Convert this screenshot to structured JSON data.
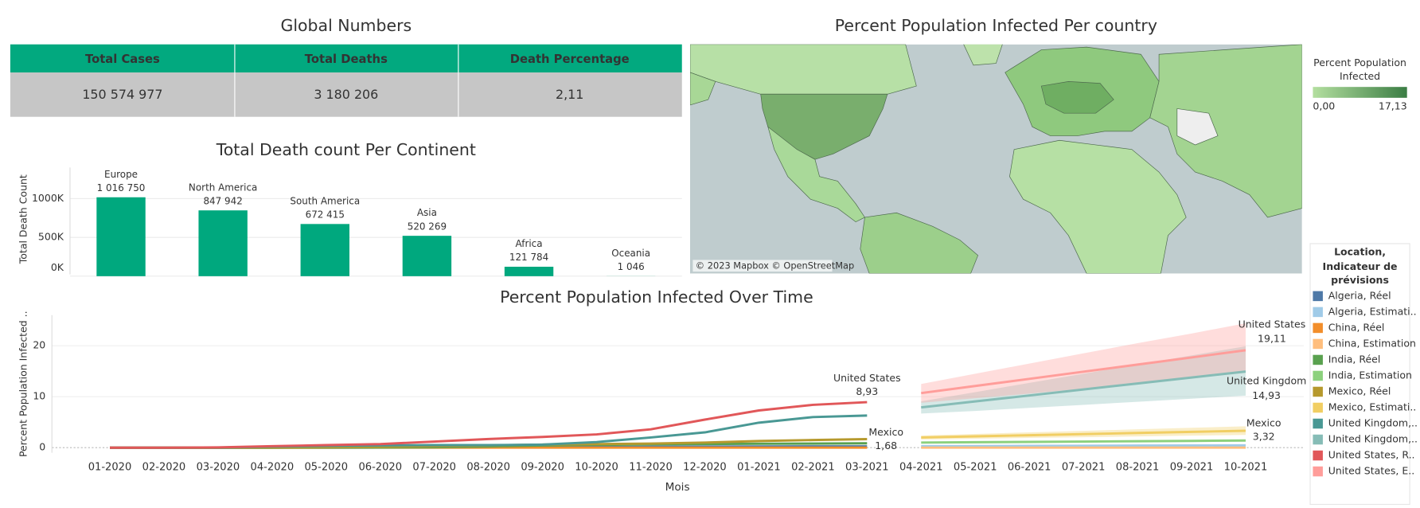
{
  "table": {
    "title": "Global Numbers",
    "columns": [
      "Total Cases",
      "Total Deaths",
      "Death Percentage"
    ],
    "rows": [
      [
        "150 574 977",
        "3 180 206",
        "2,11"
      ]
    ]
  },
  "chart_data": [
    {
      "type": "map",
      "title": "Percent Population Infected Per country",
      "legend_title": "Percent Population Infected",
      "colorscale": {
        "range": [
          0,
          17.13
        ],
        "colors": [
          "#b3df9f",
          "#3b7d44"
        ],
        "ticks": [
          {
            "value": 0,
            "label": "0,00"
          },
          {
            "value": 17.13,
            "label": "17,13"
          }
        ]
      },
      "attribution": "© 2023 Mapbox © OpenStreetMap"
    },
    {
      "type": "bar",
      "title": "Total Death count Per Continent",
      "ylabel": "Total Death Count",
      "categories": [
        "Europe",
        "North America",
        "South America",
        "Asia",
        "Africa",
        "Oceania"
      ],
      "values": [
        1016750,
        847942,
        672415,
        520269,
        121784,
        1046
      ],
      "value_labels": [
        "1 016 750",
        "847 942",
        "672 415",
        "520 269",
        "121 784",
        "1 046"
      ],
      "color": "#00a87e",
      "ylim": [
        0,
        1400000
      ],
      "yticks": [
        {
          "value": 0,
          "label": "0K"
        },
        {
          "value": 500000,
          "label": "500K"
        },
        {
          "value": 1000000,
          "label": "1000K"
        }
      ],
      "grid": true
    },
    {
      "type": "line",
      "title": "Percent Population Infected Over Time",
      "xlabel": "Mois",
      "ylabel": "Percent Population Infected ..",
      "categories": [
        "01-2020",
        "02-2020",
        "03-2020",
        "04-2020",
        "05-2020",
        "06-2020",
        "07-2020",
        "08-2020",
        "09-2020",
        "10-2020",
        "11-2020",
        "12-2020",
        "01-2021",
        "02-2021",
        "03-2021",
        "04-2021",
        "05-2021",
        "06-2021",
        "07-2021",
        "08-2021",
        "09-2021",
        "10-2021"
      ],
      "ylim": [
        -1,
        26
      ],
      "yticks": [
        0,
        10,
        20
      ],
      "grid": true,
      "legend": "right",
      "legend_title": "Location, Indicateur de prévisions",
      "series": [
        {
          "name": "Algeria, Réel",
          "color": "#4e79a7",
          "values": [
            0,
            0,
            0,
            0.01,
            0.02,
            0.03,
            0.05,
            0.08,
            0.11,
            0.13,
            0.17,
            0.22,
            0.24,
            0.25,
            0.26,
            null,
            null,
            null,
            null,
            null,
            null,
            null
          ]
        },
        {
          "name": "Algeria, Estimati..",
          "color": "#a0cbe8",
          "values": [
            null,
            null,
            null,
            null,
            null,
            null,
            null,
            null,
            null,
            null,
            null,
            null,
            null,
            null,
            null,
            0.3,
            0.32,
            0.35,
            0.37,
            0.4,
            0.42,
            0.45
          ]
        },
        {
          "name": "China, Réel",
          "color": "#f28e2b",
          "values": [
            0.001,
            0.006,
            0.006,
            0.006,
            0.006,
            0.006,
            0.006,
            0.006,
            0.006,
            0.006,
            0.006,
            0.006,
            0.007,
            0.007,
            0.007,
            null,
            null,
            null,
            null,
            null,
            null,
            null
          ]
        },
        {
          "name": "China, Estimation",
          "color": "#ffbe7d",
          "values": [
            null,
            null,
            null,
            null,
            null,
            null,
            null,
            null,
            null,
            null,
            null,
            null,
            null,
            null,
            null,
            0.007,
            0.007,
            0.007,
            0.007,
            0.007,
            0.007,
            0.007
          ]
        },
        {
          "name": "India, Réel",
          "color": "#59a14f",
          "values": [
            0,
            0,
            0,
            0,
            0.01,
            0.04,
            0.1,
            0.25,
            0.45,
            0.55,
            0.65,
            0.72,
            0.77,
            0.8,
            0.85,
            null,
            null,
            null,
            null,
            null,
            null,
            null
          ]
        },
        {
          "name": "India, Estimation",
          "color": "#8cd17d",
          "values": [
            null,
            null,
            null,
            null,
            null,
            null,
            null,
            null,
            null,
            null,
            null,
            null,
            null,
            null,
            null,
            1.0,
            1.07,
            1.13,
            1.2,
            1.27,
            1.33,
            1.4
          ]
        },
        {
          "name": "Mexico, Réel",
          "color": "#b6992d",
          "end_label": "Mexico",
          "values": [
            0,
            0,
            0,
            0.02,
            0.07,
            0.17,
            0.3,
            0.45,
            0.6,
            0.7,
            0.8,
            1.0,
            1.3,
            1.5,
            1.68,
            null,
            null,
            null,
            null,
            null,
            null,
            null
          ],
          "value_labels": [
            null,
            null,
            null,
            null,
            null,
            null,
            null,
            null,
            null,
            null,
            null,
            null,
            null,
            null,
            "1,68",
            null,
            null,
            null,
            null,
            null,
            null,
            null
          ]
        },
        {
          "name": "Mexico, Estimati..",
          "color": "#f1ce63",
          "end_label": "Mexico",
          "values": [
            null,
            null,
            null,
            null,
            null,
            null,
            null,
            null,
            null,
            null,
            null,
            null,
            null,
            null,
            null,
            2.0,
            2.22,
            2.44,
            2.66,
            2.88,
            3.1,
            3.32
          ],
          "value_labels": [
            null,
            null,
            null,
            null,
            null,
            null,
            null,
            null,
            null,
            null,
            null,
            null,
            null,
            null,
            null,
            null,
            null,
            null,
            null,
            null,
            null,
            "3,32"
          ],
          "lower": [
            null,
            null,
            null,
            null,
            null,
            null,
            null,
            null,
            null,
            null,
            null,
            null,
            null,
            null,
            null,
            1.6,
            1.75,
            1.9,
            2.05,
            2.2,
            2.35,
            2.5
          ],
          "upper": [
            null,
            null,
            null,
            null,
            null,
            null,
            null,
            null,
            null,
            null,
            null,
            null,
            null,
            null,
            null,
            2.4,
            2.7,
            3.0,
            3.3,
            3.6,
            3.9,
            4.2
          ]
        },
        {
          "name": "United Kingdom,..",
          "color": "#499894",
          "values": [
            0,
            0,
            0.01,
            0.2,
            0.35,
            0.45,
            0.5,
            0.5,
            0.6,
            1.1,
            2.0,
            3.0,
            4.9,
            6.0,
            6.3,
            null,
            null,
            null,
            null,
            null,
            null,
            null
          ]
        },
        {
          "name": "United Kingdom,..",
          "color": "#86bcb6",
          "end_label": "United Kingdom",
          "values": [
            null,
            null,
            null,
            null,
            null,
            null,
            null,
            null,
            null,
            null,
            null,
            null,
            null,
            null,
            null,
            7.9,
            9.07,
            10.24,
            11.42,
            12.59,
            13.76,
            14.93
          ],
          "value_labels": [
            null,
            null,
            null,
            null,
            null,
            null,
            null,
            null,
            null,
            null,
            null,
            null,
            null,
            null,
            null,
            null,
            null,
            null,
            null,
            null,
            null,
            "14,93"
          ],
          "lower": [
            null,
            null,
            null,
            null,
            null,
            null,
            null,
            null,
            null,
            null,
            null,
            null,
            null,
            null,
            null,
            6.7,
            7.2,
            7.8,
            8.4,
            9.0,
            9.6,
            10.2
          ],
          "upper": [
            null,
            null,
            null,
            null,
            null,
            null,
            null,
            null,
            null,
            null,
            null,
            null,
            null,
            null,
            null,
            9.1,
            10.9,
            12.7,
            14.5,
            16.3,
            18.1,
            19.9
          ]
        },
        {
          "name": "United States, R..",
          "color": "#e15759",
          "end_label": "United States",
          "values": [
            0,
            0,
            0.05,
            0.3,
            0.5,
            0.7,
            1.2,
            1.7,
            2.1,
            2.6,
            3.6,
            5.5,
            7.3,
            8.4,
            8.93,
            null,
            null,
            null,
            null,
            null,
            null,
            null
          ],
          "value_labels": [
            null,
            null,
            null,
            null,
            null,
            null,
            null,
            null,
            null,
            null,
            null,
            null,
            null,
            null,
            "8,93",
            null,
            null,
            null,
            null,
            null,
            null,
            null
          ]
        },
        {
          "name": "United States, E..",
          "color": "#ff9d9a",
          "end_label": "United States",
          "values": [
            null,
            null,
            null,
            null,
            null,
            null,
            null,
            null,
            null,
            null,
            null,
            null,
            null,
            null,
            null,
            10.7,
            12.1,
            13.5,
            14.9,
            16.3,
            17.7,
            19.11
          ],
          "value_labels": [
            null,
            null,
            null,
            null,
            null,
            null,
            null,
            null,
            null,
            null,
            null,
            null,
            null,
            null,
            null,
            null,
            null,
            null,
            null,
            null,
            null,
            "19,11"
          ],
          "lower": [
            null,
            null,
            null,
            null,
            null,
            null,
            null,
            null,
            null,
            null,
            null,
            null,
            null,
            null,
            null,
            8.8,
            9.7,
            10.6,
            11.6,
            12.6,
            13.6,
            14.7
          ],
          "upper": [
            null,
            null,
            null,
            null,
            null,
            null,
            null,
            null,
            null,
            null,
            null,
            null,
            null,
            null,
            null,
            12.5,
            14.5,
            16.5,
            18.5,
            20.5,
            22.4,
            24.4
          ]
        }
      ]
    }
  ]
}
